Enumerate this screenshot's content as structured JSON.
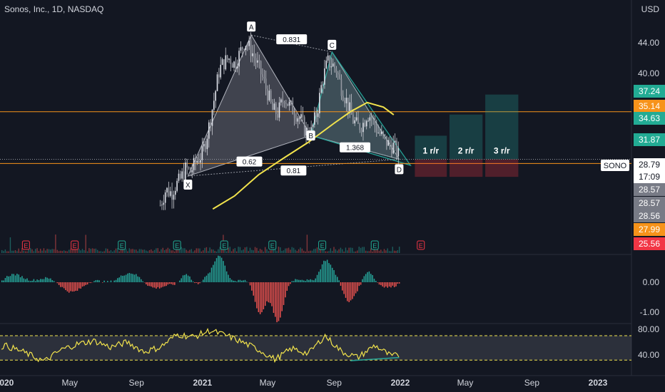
{
  "header": {
    "title": "Sonos, Inc., 1D, NASDAQ",
    "currency": "USD"
  },
  "chart_data": [
    {
      "type": "candlestick-line",
      "panel": "price",
      "ylim": [
        22,
        47
      ],
      "y_ticks": [
        {
          "value": 44.0,
          "label": "44.00"
        },
        {
          "value": 40.0,
          "label": "40.00"
        }
      ],
      "price_series": [
        [
          "2020-10-15",
          22.8
        ],
        [
          "2020-10-25",
          24.8
        ],
        [
          "2020-11-05",
          24.4
        ],
        [
          "2020-11-10",
          25.2
        ],
        [
          "2020-11-20",
          26.0
        ],
        [
          "2020-12-01",
          27.6
        ],
        [
          "2020-12-10",
          27.2
        ],
        [
          "2020-12-20",
          28.5
        ],
        [
          "2021-01-01",
          29.5
        ],
        [
          "2021-01-12",
          32.8
        ],
        [
          "2021-01-22",
          36.5
        ],
        [
          "2021-02-01",
          40.5
        ],
        [
          "2021-02-10",
          41.5
        ],
        [
          "2021-02-20",
          42.0
        ],
        [
          "2021-03-01",
          41.2
        ],
        [
          "2021-03-10",
          42.5
        ],
        [
          "2021-03-20",
          44.2
        ],
        [
          "2021-04-01",
          43.0
        ],
        [
          "2021-04-10",
          41.5
        ],
        [
          "2021-04-20",
          39.8
        ],
        [
          "2021-05-01",
          37.5
        ],
        [
          "2021-05-10",
          35.2
        ],
        [
          "2021-05-20",
          34.8
        ],
        [
          "2021-06-01",
          37.0
        ],
        [
          "2021-06-10",
          35.8
        ],
        [
          "2021-06-20",
          35.0
        ],
        [
          "2021-07-01",
          34.0
        ],
        [
          "2021-07-10",
          32.5
        ],
        [
          "2021-07-20",
          32.2
        ],
        [
          "2021-08-01",
          35.2
        ],
        [
          "2021-08-10",
          39.0
        ],
        [
          "2021-08-20",
          41.5
        ],
        [
          "2021-08-28",
          41.2
        ],
        [
          "2021-09-05",
          40.5
        ],
        [
          "2021-09-15",
          38.0
        ],
        [
          "2021-09-25",
          36.2
        ],
        [
          "2021-10-05",
          34.0
        ],
        [
          "2021-10-15",
          33.0
        ],
        [
          "2021-10-25",
          33.5
        ],
        [
          "2021-11-01",
          34.8
        ],
        [
          "2021-11-10",
          34.2
        ],
        [
          "2021-11-20",
          32.5
        ],
        [
          "2021-12-01",
          31.5
        ],
        [
          "2021-12-10",
          30.8
        ],
        [
          "2021-12-20",
          30.5
        ],
        [
          "2021-12-30",
          29.2
        ]
      ],
      "moving_average": {
        "color": "#f2e34c",
        "points": [
          [
            "2021-01-20",
            22.3
          ],
          [
            "2021-03-01",
            24.0
          ],
          [
            "2021-04-15",
            26.8
          ],
          [
            "2021-06-01",
            29.0
          ],
          [
            "2021-07-15",
            31.0
          ],
          [
            "2021-09-01",
            33.5
          ],
          [
            "2021-10-01",
            35.0
          ],
          [
            "2021-11-01",
            36.2
          ],
          [
            "2021-12-01",
            35.6
          ],
          [
            "2021-12-20",
            34.6
          ]
        ]
      },
      "harmonic_pattern": {
        "points": [
          {
            "label": "X",
            "date": "2020-12-05",
            "price": 26.6
          },
          {
            "label": "A",
            "date": "2021-04-01",
            "price": 45.0
          },
          {
            "label": "B",
            "date": "2021-07-20",
            "price": 31.9
          },
          {
            "label": "C",
            "date": "2021-08-28",
            "price": 42.8
          },
          {
            "label": "D",
            "date": "2021-12-30",
            "price": 28.8
          }
        ],
        "ratios": [
          {
            "label": "0.831",
            "from": "A",
            "to": "C"
          },
          {
            "label": "0.62",
            "from": "X",
            "to": "B"
          },
          {
            "label": "1.368",
            "from": "B",
            "to": "D"
          },
          {
            "label": "0.81",
            "from": "X",
            "to": "D"
          }
        ]
      },
      "horizontal_lines": [
        {
          "price": 35.0,
          "color": "#f7931a"
        },
        {
          "price": 28.25,
          "color": "#f7931a"
        },
        {
          "price": 28.79,
          "color": "#9598a1",
          "style": "dotted"
        }
      ],
      "targets": [
        {
          "label": "1 r/r",
          "start": "2022-01-28",
          "end": "2022-03-28",
          "top": 31.87,
          "entry": 28.79,
          "stop": 26.5
        },
        {
          "label": "2 r/r",
          "start": "2022-04-02",
          "end": "2022-06-02",
          "top": 34.63,
          "entry": 28.79,
          "stop": 26.5
        },
        {
          "label": "3 r/r",
          "start": "2022-06-07",
          "end": "2022-08-07",
          "top": 37.24,
          "entry": 28.79,
          "stop": 26.5
        }
      ],
      "price_labels": [
        {
          "text": "37.24",
          "bg": "#22ab94",
          "price": 37.24
        },
        {
          "text": "35.14",
          "bg": "#f7931a",
          "price": 35.14
        },
        {
          "text": "34.63",
          "bg": "#22ab94",
          "price": 34.63
        },
        {
          "text": "31.87",
          "bg": "#22ab94",
          "price": 31.87
        },
        {
          "text": "28.79",
          "bg": "#ffffff",
          "price": 28.79
        },
        {
          "text": "17:09",
          "bg": "#ffffff",
          "price": 28.79
        },
        {
          "text": "28.57",
          "bg": "#787b86",
          "price": 28.57
        },
        {
          "text": "28.57",
          "bg": "#787b86",
          "price": 28.57
        },
        {
          "text": "28.56",
          "bg": "#787b86",
          "price": 28.56
        },
        {
          "text": "27.99",
          "bg": "#f7931a",
          "price": 27.99
        },
        {
          "text": "25.56",
          "bg": "#f23645",
          "price": 25.56
        }
      ],
      "symbol_label": "SONO",
      "earnings_markers": [
        {
          "date": "2019-11-15",
          "letter": "E",
          "color": "#22ab94"
        },
        {
          "date": "2020-02-10",
          "letter": "E",
          "color": "#f23645"
        },
        {
          "date": "2020-05-10",
          "letter": "E",
          "color": "#f23645"
        },
        {
          "date": "2020-08-05",
          "letter": "E",
          "color": "#22ab94"
        },
        {
          "date": "2020-11-15",
          "letter": "E",
          "color": "#22ab94"
        },
        {
          "date": "2021-02-10",
          "letter": "E",
          "color": "#22ab94"
        },
        {
          "date": "2021-05-10",
          "letter": "E",
          "color": "#22ab94"
        },
        {
          "date": "2021-08-10",
          "letter": "E",
          "color": "#22ab94"
        },
        {
          "date": "2021-11-15",
          "letter": "E",
          "color": "#22ab94"
        },
        {
          "date": "2022-02-08",
          "letter": "E",
          "color": "#f23645"
        }
      ]
    },
    {
      "type": "bar",
      "panel": "histogram",
      "ylim": [
        -1.2,
        1.0
      ],
      "y_ticks": [
        {
          "value": 0,
          "label": "0.00"
        },
        {
          "value": -1,
          "label": "-1.00"
        }
      ],
      "pos_color": "#26a69a",
      "neg_color": "#ef5350"
    },
    {
      "type": "line",
      "panel": "oscillator",
      "ylim": [
        25,
        90
      ],
      "y_ticks": [
        {
          "value": 80,
          "label": "80.00"
        },
        {
          "value": 40,
          "label": "40.00"
        }
      ],
      "band": [
        32,
        70
      ],
      "color": "#f2e34c",
      "points": [
        [
          "2019-11-01",
          50
        ],
        [
          "2019-12-01",
          42
        ],
        [
          "2020-01-01",
          55
        ],
        [
          "2020-02-01",
          46
        ],
        [
          "2020-03-15",
          30
        ],
        [
          "2020-04-15",
          48
        ],
        [
          "2020-05-15",
          57
        ],
        [
          "2020-06-15",
          62
        ],
        [
          "2020-07-15",
          52
        ],
        [
          "2020-08-15",
          60
        ],
        [
          "2020-09-15",
          45
        ],
        [
          "2020-10-15",
          52
        ],
        [
          "2020-11-15",
          72
        ],
        [
          "2020-12-15",
          68
        ],
        [
          "2021-01-15",
          78
        ],
        [
          "2021-02-15",
          70
        ],
        [
          "2021-03-15",
          60
        ],
        [
          "2021-04-15",
          48
        ],
        [
          "2021-05-15",
          33
        ],
        [
          "2021-06-15",
          50
        ],
        [
          "2021-07-15",
          42
        ],
        [
          "2021-08-15",
          70
        ],
        [
          "2021-09-15",
          45
        ],
        [
          "2021-10-15",
          36
        ],
        [
          "2021-11-15",
          55
        ],
        [
          "2021-12-15",
          38
        ],
        [
          "2022-01-01",
          40
        ]
      ]
    }
  ],
  "x_axis": {
    "ticks": [
      {
        "date": "2020-01-01",
        "label": "2020"
      },
      {
        "date": "2020-05-01",
        "label": "May"
      },
      {
        "date": "2020-09-01",
        "label": "Sep"
      },
      {
        "date": "2021-01-01",
        "label": "2021"
      },
      {
        "date": "2021-05-01",
        "label": "May"
      },
      {
        "date": "2021-09-01",
        "label": "Sep"
      },
      {
        "date": "2022-01-01",
        "label": "2022"
      },
      {
        "date": "2022-05-01",
        "label": "May"
      },
      {
        "date": "2022-09-01",
        "label": "Sep"
      },
      {
        "date": "2023-01-01",
        "label": "2023"
      }
    ]
  }
}
